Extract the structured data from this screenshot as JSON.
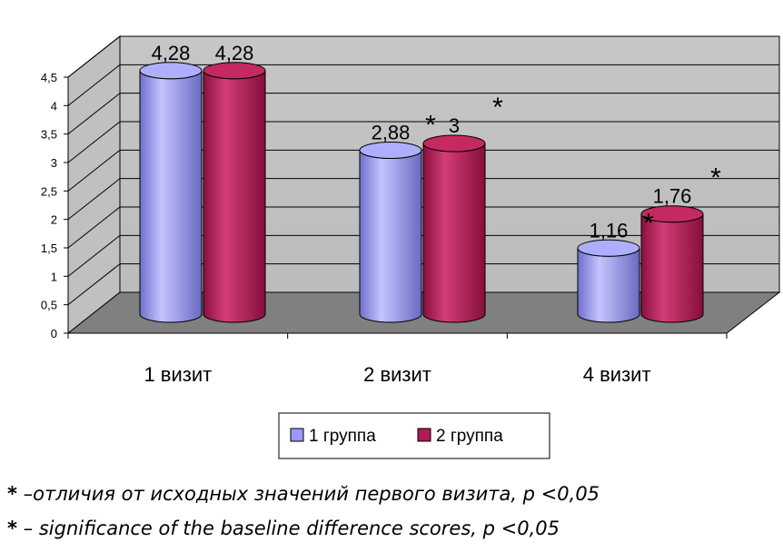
{
  "chart_data": {
    "type": "bar",
    "style": "3d-cylinder",
    "categories": [
      "1 визит",
      "2 визит",
      "4 визит"
    ],
    "series": [
      {
        "name": "1 группа",
        "values": [
          4.28,
          2.88,
          1.16
        ],
        "labels": [
          "4,28",
          "2,88",
          "1,16"
        ],
        "color": "#9999ff"
      },
      {
        "name": "2 группа",
        "values": [
          4.28,
          3,
          1.76
        ],
        "labels": [
          "4,28",
          "3",
          "1,76"
        ],
        "color": "#b01a55"
      }
    ],
    "significance_marks": [
      {
        "category": 1,
        "series": 0,
        "text": "*"
      },
      {
        "category": 1,
        "series": 1,
        "text": "*"
      },
      {
        "category": 2,
        "series": 0,
        "text": "*"
      },
      {
        "category": 2,
        "series": 1,
        "text": "*"
      }
    ],
    "ylim": [
      0,
      4.5
    ],
    "yticks": [
      "0",
      "0,5",
      "1",
      "1,5",
      "2",
      "2,5",
      "3",
      "3,5",
      "4",
      "4,5"
    ],
    "grid": true,
    "legend_position": "bottom",
    "background_color": "#c0c0c0",
    "floor_color": "#808080"
  },
  "footnotes": [
    {
      "mark": "*",
      "text": " –отличия от исходных значений первого визита, p <0,05"
    },
    {
      "mark": "*",
      "text": " – significance of the baseline difference scores, p <0,05"
    }
  ]
}
